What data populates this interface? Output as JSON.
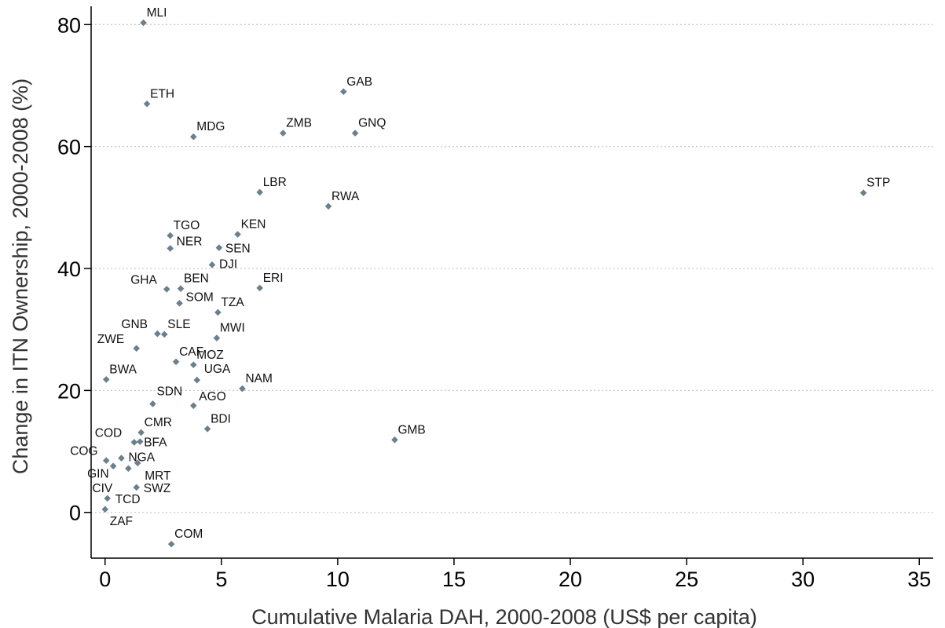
{
  "chart_data": {
    "type": "scatter",
    "title": "",
    "xlabel": "Cumulative Malaria DAH, 2000-2008 (US$ per capita)",
    "ylabel": "Change in ITN Ownership, 2000-2008 (%)",
    "xlim": [
      -0.6,
      35.6
    ],
    "ylim": [
      -7.5,
      83
    ],
    "xticks": [
      0,
      5,
      10,
      15,
      20,
      25,
      30,
      35
    ],
    "yticks": [
      0,
      20,
      40,
      60,
      80
    ],
    "grid": "horizontal-dotted",
    "marker_color": "#6b7f8c",
    "points": [
      {
        "label": "MLI",
        "x": 1.65,
        "y": 80.3
      },
      {
        "label": "ETH",
        "x": 1.8,
        "y": 67
      },
      {
        "label": "GAB",
        "x": 10.25,
        "y": 69
      },
      {
        "label": "MDG",
        "x": 3.8,
        "y": 61.6
      },
      {
        "label": "ZMB",
        "x": 7.65,
        "y": 62.2
      },
      {
        "label": "GNQ",
        "x": 10.75,
        "y": 62.2
      },
      {
        "label": "LBR",
        "x": 6.65,
        "y": 52.5
      },
      {
        "label": "RWA",
        "x": 9.6,
        "y": 50.2
      },
      {
        "label": "STP",
        "x": 32.6,
        "y": 52.4
      },
      {
        "label": "TGO",
        "x": 2.8,
        "y": 45.4
      },
      {
        "label": "KEN",
        "x": 5.7,
        "y": 45.6
      },
      {
        "label": "NER",
        "x": 2.8,
        "y": 43.3
      },
      {
        "label": "SEN",
        "x": 4.9,
        "y": 43.4
      },
      {
        "label": "DJI",
        "x": 4.6,
        "y": 40.6
      },
      {
        "label": "GHA",
        "x": 2.65,
        "y": 36.6
      },
      {
        "label": "BEN",
        "x": 3.25,
        "y": 36.7
      },
      {
        "label": "ERI",
        "x": 6.65,
        "y": 36.8
      },
      {
        "label": "SOM",
        "x": 3.2,
        "y": 34.3
      },
      {
        "label": "TZA",
        "x": 4.85,
        "y": 32.8
      },
      {
        "label": "GNB",
        "x": 2.25,
        "y": 29.3
      },
      {
        "label": "SLE",
        "x": 2.55,
        "y": 29.2
      },
      {
        "label": "MWI",
        "x": 4.8,
        "y": 28.6
      },
      {
        "label": "ZWE",
        "x": 1.35,
        "y": 26.9
      },
      {
        "label": "CAF",
        "x": 3.05,
        "y": 24.7
      },
      {
        "label": "MOZ",
        "x": 3.8,
        "y": 24.2
      },
      {
        "label": "UGA",
        "x": 3.95,
        "y": 21.7
      },
      {
        "label": "BWA",
        "x": 0.05,
        "y": 21.8
      },
      {
        "label": "NAM",
        "x": 5.9,
        "y": 20.3
      },
      {
        "label": "SDN",
        "x": 2.05,
        "y": 17.8
      },
      {
        "label": "AGO",
        "x": 3.8,
        "y": 17.5
      },
      {
        "label": "BDI",
        "x": 4.4,
        "y": 13.7
      },
      {
        "label": "CMR",
        "x": 1.55,
        "y": 13.1
      },
      {
        "label": "COD",
        "x": 1.25,
        "y": 11.5
      },
      {
        "label": "BFA",
        "x": 1.5,
        "y": 11.6
      },
      {
        "label": "GMB",
        "x": 12.45,
        "y": 11.9
      },
      {
        "label": "COG",
        "x": 0.05,
        "y": 8.5
      },
      {
        "label": "NGA",
        "x": 0.7,
        "y": 8.9
      },
      {
        "label": "GIN",
        "x": 0.35,
        "y": 7.6
      },
      {
        "label": "MRT",
        "x": 1.4,
        "y": 8.1
      },
      {
        "label": "CIV",
        "x": 1.0,
        "y": 7.2
      },
      {
        "label": "SWZ",
        "x": 1.35,
        "y": 4.1
      },
      {
        "label": "TCD",
        "x": 0.1,
        "y": 2.3
      },
      {
        "label": "ZAF",
        "x": 0.0,
        "y": 0.5
      },
      {
        "label": "COM",
        "x": 2.85,
        "y": -5.2
      }
    ]
  }
}
